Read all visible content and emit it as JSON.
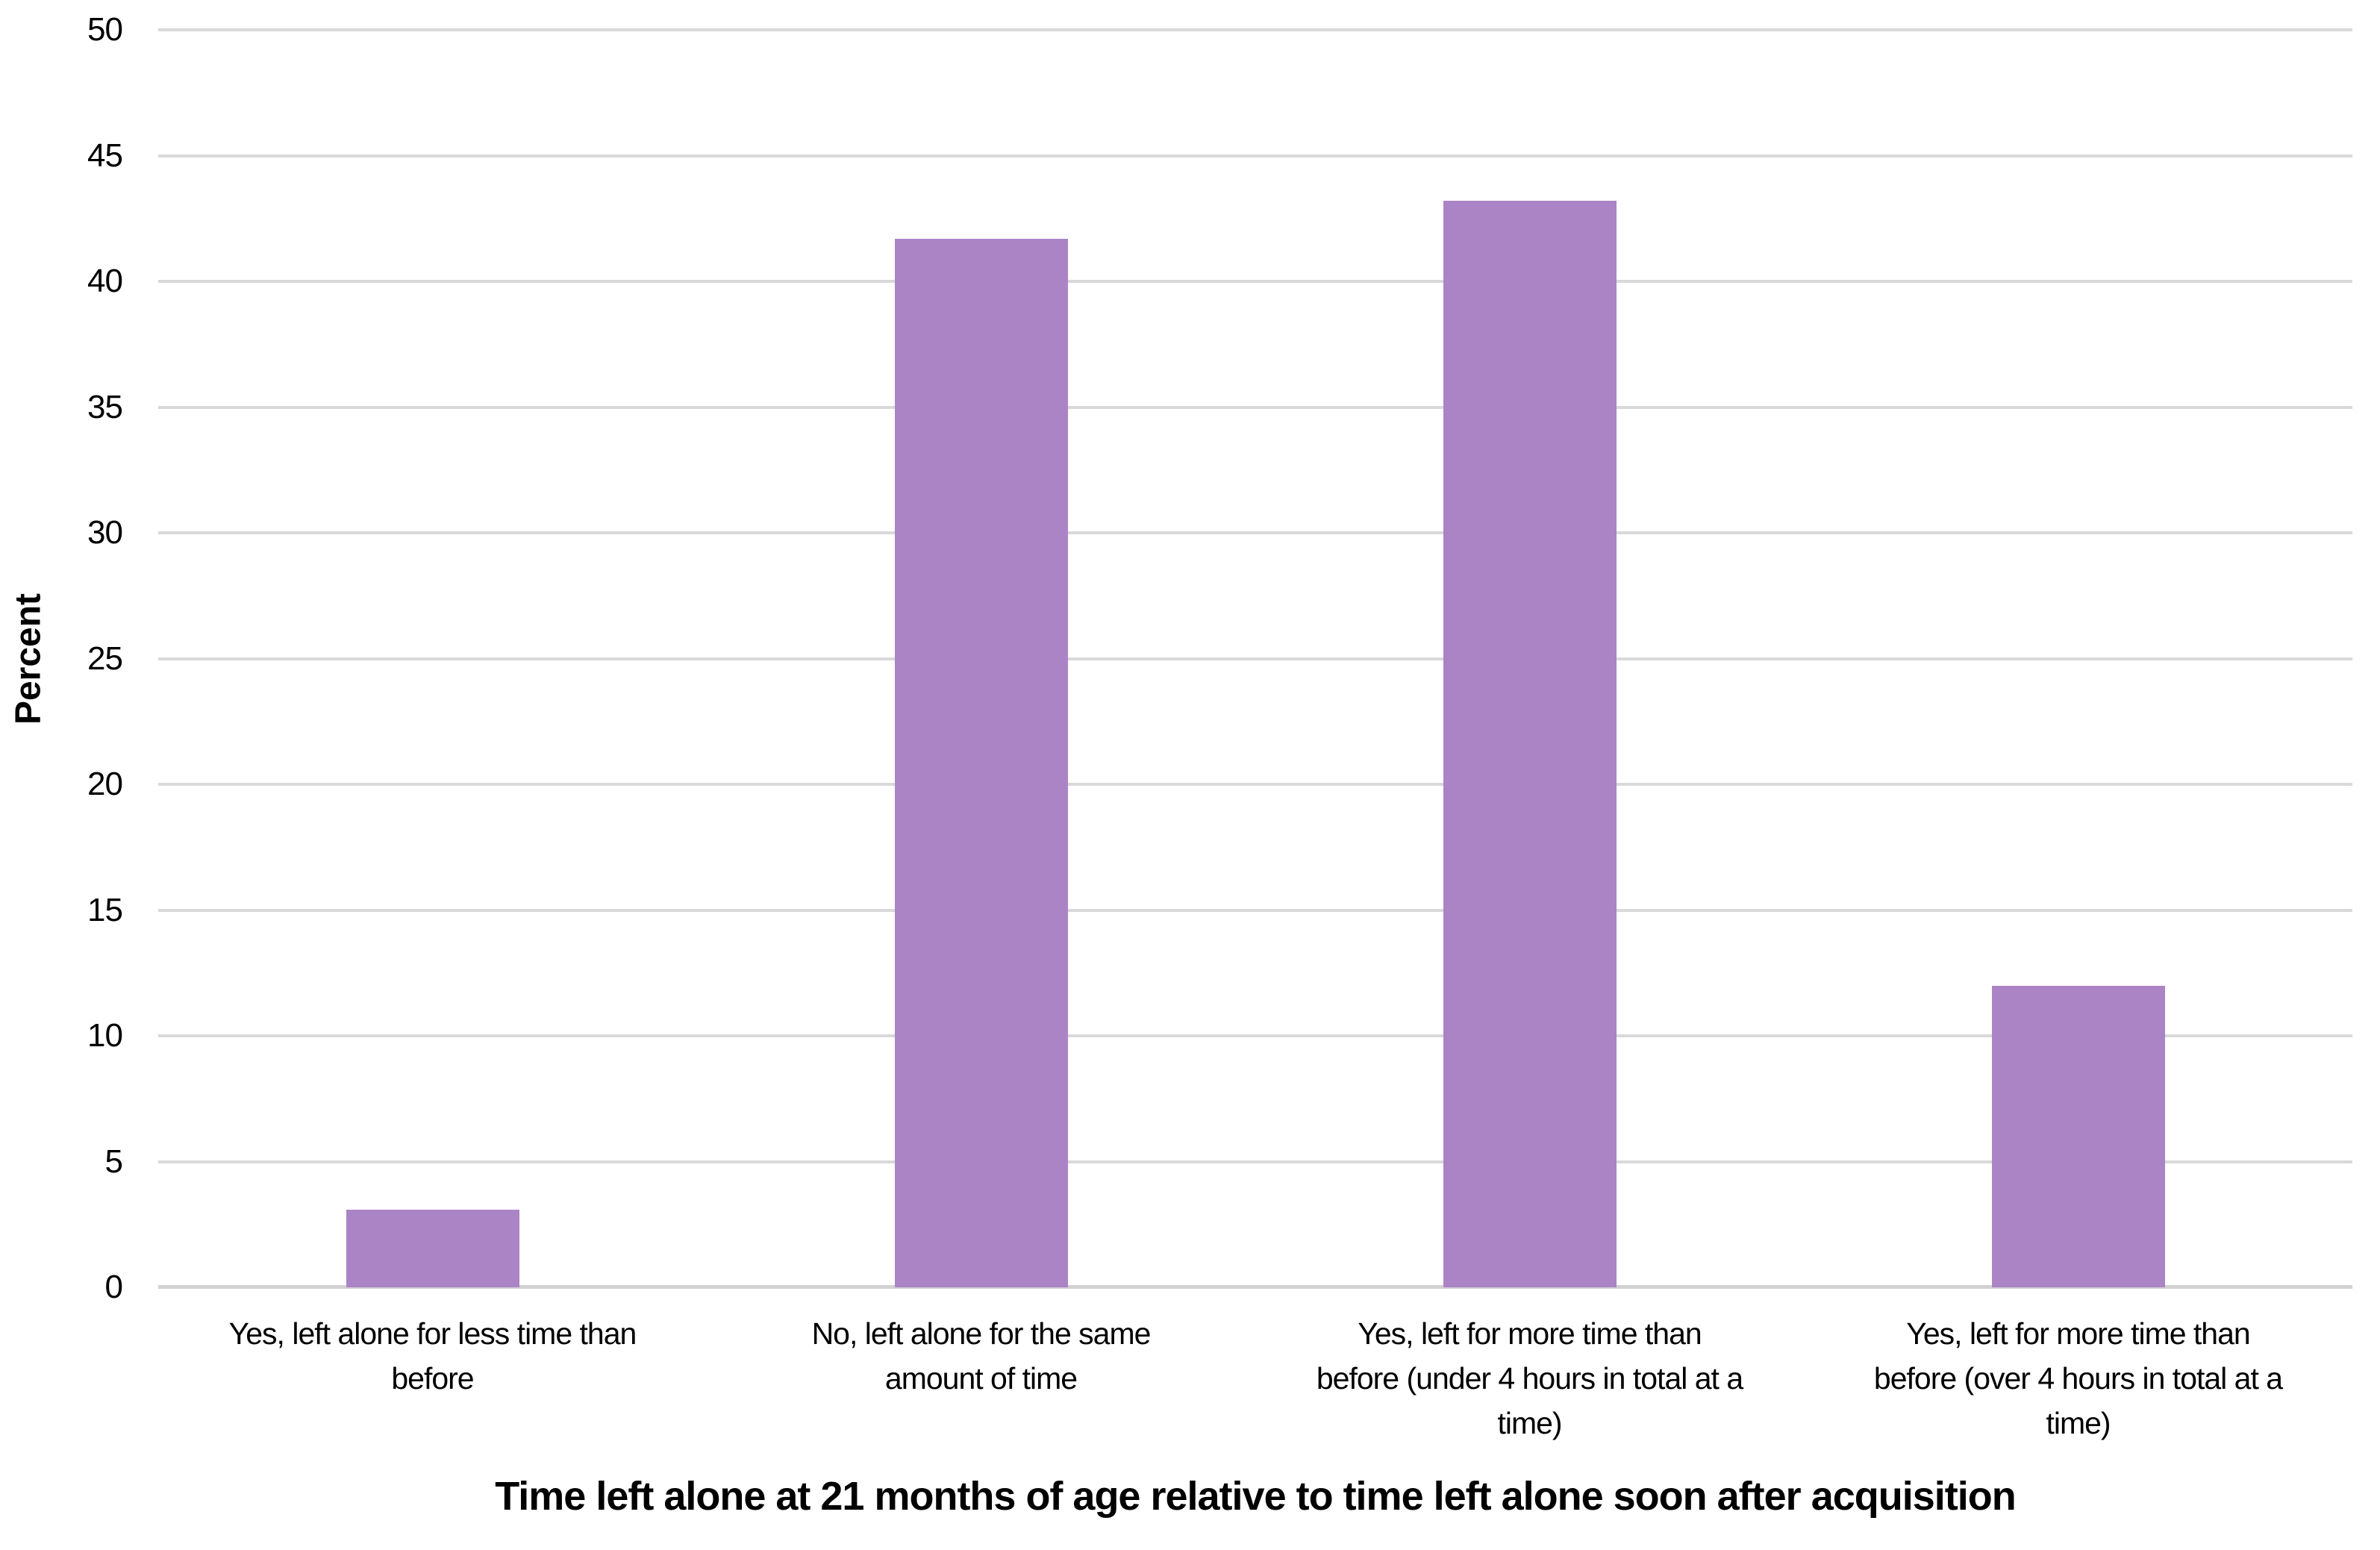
{
  "chart_data": {
    "type": "bar",
    "categories": [
      "Yes, left alone for less time than\nbefore",
      "No, left alone for the same\namount of time",
      "Yes, left for more time than\nbefore (under 4 hours in total at a\ntime)",
      "Yes, left for more time than\nbefore (over 4 hours in total at a\ntime)"
    ],
    "values": [
      3.1,
      41.7,
      43.2,
      12
    ],
    "title": "",
    "xlabel": "Time left alone at 21 months of age relative to time left alone soon after acquisition",
    "ylabel": "Percent",
    "ylim": [
      0,
      50
    ],
    "yticks": [
      0,
      5,
      10,
      15,
      20,
      25,
      30,
      35,
      40,
      45,
      50
    ],
    "grid": true,
    "legend_position": "none",
    "bar_color": "#ab84c6",
    "gridline_color": "#d9d9d9",
    "axis_line_color": "#d2d2d2",
    "text_color": "#000000"
  }
}
